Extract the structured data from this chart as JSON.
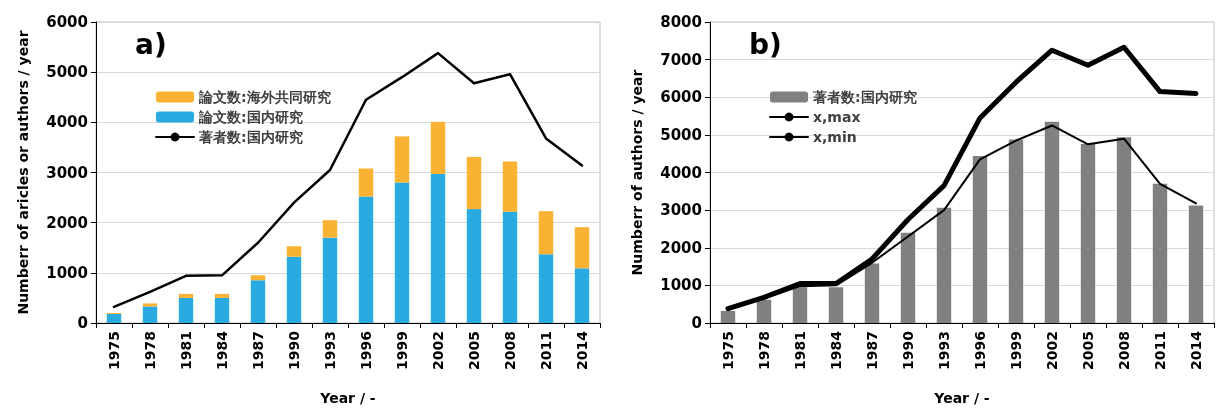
{
  "chart_data": [
    {
      "type": "bar",
      "stacked": true,
      "annotations": [
        "a)"
      ],
      "xlabel": "Year / -",
      "ylabel": "Numberr of aricles or authors / year",
      "categories": [
        "1975",
        "1978",
        "1981",
        "1984",
        "1987",
        "1990",
        "1993",
        "1996",
        "1999",
        "2002",
        "2005",
        "2008",
        "2011",
        "2014"
      ],
      "series": [
        {
          "name": "論文数:国内研究",
          "color": "#29abe2",
          "values": [
            180,
            330,
            500,
            500,
            850,
            1320,
            1700,
            2520,
            2800,
            2970,
            2270,
            2220,
            1370,
            1090
          ]
        },
        {
          "name": "論文数:海外共同研究",
          "color": "#f9b233",
          "values": [
            20,
            60,
            80,
            80,
            100,
            210,
            350,
            560,
            920,
            1040,
            1040,
            1000,
            860,
            820
          ]
        },
        {
          "name": "著者数:国内研究",
          "type": "line",
          "color": "#000000",
          "values": [
            320,
            620,
            940,
            950,
            1600,
            2400,
            3050,
            4450,
            4900,
            5380,
            4780,
            4960,
            3680,
            3140
          ]
        }
      ],
      "ylim": [
        0,
        6000
      ],
      "yticks": [
        0,
        1000,
        2000,
        3000,
        4000,
        5000,
        6000
      ],
      "grid": "y",
      "legend": "top left",
      "marker": "none"
    },
    {
      "type": "bar",
      "annotations": [
        "b)"
      ],
      "xlabel": "Year / -",
      "ylabel": "Numberr of authors / year",
      "categories": [
        "1975",
        "1978",
        "1981",
        "1984",
        "1987",
        "1990",
        "1993",
        "1996",
        "1999",
        "2002",
        "2005",
        "2008",
        "2011",
        "2014"
      ],
      "series": [
        {
          "name": "著者数:国内研究",
          "color": "#808080",
          "values": [
            320,
            620,
            950,
            950,
            1580,
            2400,
            3060,
            4440,
            4880,
            5350,
            4760,
            4940,
            3700,
            3120
          ]
        },
        {
          "name": "x,max",
          "type": "line",
          "color": "#000000",
          "values": [
            380,
            680,
            1050,
            1050,
            1700,
            2750,
            3650,
            5450,
            6400,
            7250,
            6850,
            7330,
            6150,
            6100
          ]
        },
        {
          "name": "x,min",
          "type": "line",
          "color": "#000000",
          "values": [
            350,
            650,
            980,
            1000,
            1600,
            2300,
            3000,
            4350,
            4850,
            5250,
            4750,
            4900,
            3700,
            3180
          ]
        }
      ],
      "ylim": [
        0,
        8000
      ],
      "yticks": [
        0,
        1000,
        2000,
        3000,
        4000,
        5000,
        6000,
        7000,
        8000
      ],
      "grid": "y",
      "legend": "top left",
      "marker": "none"
    }
  ]
}
